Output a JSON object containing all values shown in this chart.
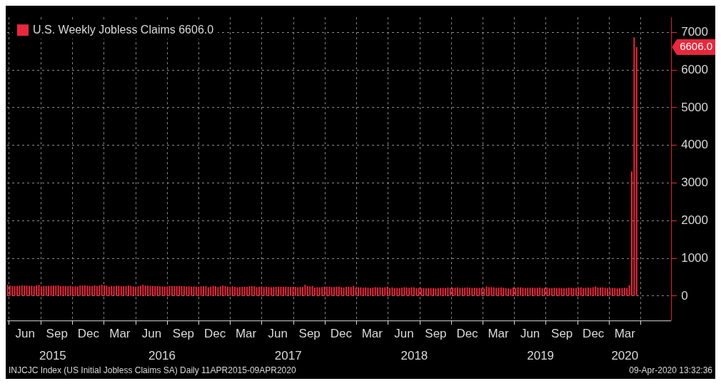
{
  "chart_data": {
    "type": "bar",
    "legend": "top left",
    "grid": true,
    "series": [
      {
        "name": "U.S. Weekly Jobless Claims 6606.0",
        "color": "#e8283c",
        "x": [
          "2015-04-11",
          "2015-04-18",
          "2015-04-25",
          "2015-05-02",
          "2015-05-09",
          "2015-05-16",
          "2015-05-23",
          "2015-05-30",
          "2015-06-06",
          "2015-06-13",
          "2015-06-20",
          "2015-06-27",
          "2015-07-04",
          "2015-07-11",
          "2015-07-18",
          "2015-07-25",
          "2015-08-01",
          "2015-08-08",
          "2015-08-15",
          "2015-08-22",
          "2015-08-29",
          "2015-09-05",
          "2015-09-12",
          "2015-09-19",
          "2015-09-26",
          "2015-10-03",
          "2015-10-10",
          "2015-10-17",
          "2015-10-24",
          "2015-10-31",
          "2015-11-07",
          "2015-11-14",
          "2015-11-21",
          "2015-11-28",
          "2015-12-05",
          "2015-12-12",
          "2015-12-19",
          "2015-12-26",
          "2016-01-02",
          "2016-01-09",
          "2016-01-16",
          "2016-01-23",
          "2016-01-30",
          "2016-02-06",
          "2016-02-13",
          "2016-02-20",
          "2016-02-27",
          "2016-03-05",
          "2016-03-12",
          "2016-03-19",
          "2016-03-26",
          "2016-04-02",
          "2016-04-09",
          "2016-04-16",
          "2016-04-23",
          "2016-04-30",
          "2016-05-07",
          "2016-05-14",
          "2016-05-21",
          "2016-05-28",
          "2016-06-04",
          "2016-06-11",
          "2016-06-18",
          "2016-06-25",
          "2016-07-02",
          "2016-07-09",
          "2016-07-16",
          "2016-07-23",
          "2016-07-30",
          "2016-08-06",
          "2016-08-13",
          "2016-08-20",
          "2016-08-27",
          "2016-09-03",
          "2016-09-10",
          "2016-09-17",
          "2016-09-24",
          "2016-10-01",
          "2016-10-08",
          "2016-10-15",
          "2016-10-22",
          "2016-10-29",
          "2016-11-05",
          "2016-11-12",
          "2016-11-19",
          "2016-11-26",
          "2016-12-03",
          "2016-12-10",
          "2016-12-17",
          "2016-12-24",
          "2016-12-31",
          "2017-01-07",
          "2017-01-14",
          "2017-01-21",
          "2017-01-28",
          "2017-02-04",
          "2017-02-11",
          "2017-02-18",
          "2017-02-25",
          "2017-03-04",
          "2017-03-11",
          "2017-03-18",
          "2017-03-25",
          "2017-04-01",
          "2017-04-08",
          "2017-04-15",
          "2017-04-22",
          "2017-04-29",
          "2017-05-06",
          "2017-05-13",
          "2017-05-20",
          "2017-05-27",
          "2017-06-03",
          "2017-06-10",
          "2017-06-17",
          "2017-06-24",
          "2017-07-01",
          "2017-07-08",
          "2017-07-15",
          "2017-07-22",
          "2017-07-29",
          "2017-08-05",
          "2017-08-12",
          "2017-08-19",
          "2017-08-26",
          "2017-09-02",
          "2017-09-09",
          "2017-09-16",
          "2017-09-23",
          "2017-09-30",
          "2017-10-07",
          "2017-10-14",
          "2017-10-21",
          "2017-10-28",
          "2017-11-04",
          "2017-11-11",
          "2017-11-18",
          "2017-11-25",
          "2017-12-02",
          "2017-12-09",
          "2017-12-16",
          "2017-12-23",
          "2017-12-30",
          "2018-01-06",
          "2018-01-13",
          "2018-01-20",
          "2018-01-27",
          "2018-02-03",
          "2018-02-10",
          "2018-02-17",
          "2018-02-24",
          "2018-03-03",
          "2018-03-10",
          "2018-03-17",
          "2018-03-24",
          "2018-03-31",
          "2018-04-07",
          "2018-04-14",
          "2018-04-21",
          "2018-04-28",
          "2018-05-05",
          "2018-05-12",
          "2018-05-19",
          "2018-05-26",
          "2018-06-02",
          "2018-06-09",
          "2018-06-16",
          "2018-06-23",
          "2018-06-30",
          "2018-07-07",
          "2018-07-14",
          "2018-07-21",
          "2018-07-28",
          "2018-08-04",
          "2018-08-11",
          "2018-08-18",
          "2018-08-25",
          "2018-09-01",
          "2018-09-08",
          "2018-09-15",
          "2018-09-22",
          "2018-09-29",
          "2018-10-06",
          "2018-10-13",
          "2018-10-20",
          "2018-10-27",
          "2018-11-03",
          "2018-11-10",
          "2018-11-17",
          "2018-11-24",
          "2018-12-01",
          "2018-12-08",
          "2018-12-15",
          "2018-12-22",
          "2018-12-29",
          "2019-01-05",
          "2019-01-12",
          "2019-01-19",
          "2019-01-26",
          "2019-02-02",
          "2019-02-09",
          "2019-02-16",
          "2019-02-23",
          "2019-03-02",
          "2019-03-09",
          "2019-03-16",
          "2019-03-23",
          "2019-03-30",
          "2019-04-06",
          "2019-04-13",
          "2019-04-20",
          "2019-04-27",
          "2019-05-04",
          "2019-05-11",
          "2019-05-18",
          "2019-05-25",
          "2019-06-01",
          "2019-06-08",
          "2019-06-15",
          "2019-06-22",
          "2019-06-29",
          "2019-07-06",
          "2019-07-13",
          "2019-07-20",
          "2019-07-27",
          "2019-08-03",
          "2019-08-10",
          "2019-08-17",
          "2019-08-24",
          "2019-08-31",
          "2019-09-07",
          "2019-09-14",
          "2019-09-21",
          "2019-09-28",
          "2019-10-05",
          "2019-10-12",
          "2019-10-19",
          "2019-10-26",
          "2019-11-02",
          "2019-11-09",
          "2019-11-16",
          "2019-11-23",
          "2019-11-30",
          "2019-12-07",
          "2019-12-14",
          "2019-12-21",
          "2019-12-28",
          "2020-01-04",
          "2020-01-11",
          "2020-01-18",
          "2020-01-25",
          "2020-02-01",
          "2020-02-08",
          "2020-02-15",
          "2020-02-22",
          "2020-02-29",
          "2020-03-07",
          "2020-03-14",
          "2020-03-21",
          "2020-03-28",
          "2020-04-04"
        ],
        "values": [
          294,
          278,
          262,
          265,
          266,
          274,
          282,
          276,
          279,
          268,
          271,
          262,
          281,
          297,
          255,
          267,
          270,
          269,
          274,
          277,
          277,
          282,
          264,
          267,
          267,
          263,
          271,
          255,
          259,
          260,
          276,
          276,
          282,
          272,
          267,
          270,
          282,
          267,
          277,
          294,
          282,
          278,
          248,
          269,
          262,
          272,
          271,
          259,
          265,
          266,
          276,
          267,
          253,
          248,
          257,
          274,
          294,
          277,
          278,
          268,
          267,
          264,
          268,
          259,
          254,
          253,
          253,
          266,
          269,
          263,
          262,
          261,
          262,
          260,
          252,
          258,
          249,
          254,
          249,
          246,
          260,
          258,
          265,
          235,
          251,
          268,
          258,
          241,
          258,
          275,
          265,
          247,
          237,
          259,
          246,
          234,
          239,
          244,
          246,
          244,
          258,
          261,
          258,
          234,
          245,
          257,
          241,
          248,
          238,
          234,
          239,
          243,
          250,
          244,
          243,
          249,
          244,
          240,
          244,
          245,
          233,
          237,
          238,
          296,
          262,
          254,
          268,
          223,
          236,
          229,
          241,
          244,
          247,
          243,
          240,
          241,
          246,
          251,
          236,
          226,
          244,
          250,
          241,
          261,
          220,
          232,
          230,
          221,
          231,
          222,
          213,
          226,
          233,
          232,
          232,
          220,
          228,
          242,
          210,
          232,
          209,
          214,
          211,
          222,
          236,
          224,
          222,
          228,
          230,
          208,
          217,
          213,
          210,
          204,
          210,
          209,
          213,
          201,
          208,
          215,
          216,
          213,
          224,
          209,
          220,
          222,
          229,
          216,
          216,
          218,
          231,
          220,
          214,
          221,
          216,
          216,
          213,
          200,
          253,
          235,
          234,
          229,
          216,
          221,
          230,
          218,
          211,
          202,
          192,
          226,
          213,
          230,
          229,
          222,
          212,
          215,
          221,
          220,
          216,
          221,
          227,
          208,
          216,
          220,
          210,
          209,
          219,
          212,
          215,
          213,
          206,
          212,
          218,
          219,
          210,
          214,
          220,
          228,
          211,
          218,
          226,
          217,
          234,
          252,
          224,
          223,
          230,
          215,
          208,
          211,
          214,
          217,
          203,
          205,
          210,
          219,
          211,
          282,
          3307,
          6867,
          6606
        ]
      }
    ],
    "xlim": [
      "2015-04-10",
      "2020-07-13"
    ],
    "xticks": [
      {
        "value": "2015-06-01",
        "label": "Jun"
      },
      {
        "value": "2015-09-01",
        "label": "Sep"
      },
      {
        "value": "2015-12-01",
        "label": "Dec"
      },
      {
        "value": "2016-03-01",
        "label": "Mar"
      },
      {
        "value": "2016-06-01",
        "label": "Jun"
      },
      {
        "value": "2016-09-01",
        "label": "Sep"
      },
      {
        "value": "2016-12-01",
        "label": "Dec"
      },
      {
        "value": "2017-03-01",
        "label": "Mar"
      },
      {
        "value": "2017-06-01",
        "label": "Jun"
      },
      {
        "value": "2017-09-01",
        "label": "Sep"
      },
      {
        "value": "2017-12-01",
        "label": "Dec"
      },
      {
        "value": "2018-03-01",
        "label": "Mar"
      },
      {
        "value": "2018-06-01",
        "label": "Jun"
      },
      {
        "value": "2018-09-01",
        "label": "Sep"
      },
      {
        "value": "2018-12-01",
        "label": "Dec"
      },
      {
        "value": "2019-03-01",
        "label": "Mar"
      },
      {
        "value": "2019-06-01",
        "label": "Jun"
      },
      {
        "value": "2019-09-01",
        "label": "Sep"
      },
      {
        "value": "2019-12-01",
        "label": "Dec"
      },
      {
        "value": "2020-03-01",
        "label": "Mar"
      }
    ],
    "x2lim": [
      "2015-04-10",
      "2020-07-13"
    ],
    "x2ticks": [
      {
        "value": "2015-08-20",
        "label": "2015"
      },
      {
        "value": "2016-07-01",
        "label": "2016"
      },
      {
        "value": "2017-07-01",
        "label": "2017"
      },
      {
        "value": "2018-07-01",
        "label": "2018"
      },
      {
        "value": "2019-07-01",
        "label": "2019"
      },
      {
        "value": "2020-03-01",
        "label": "2020"
      }
    ],
    "ylim": [
      -650,
      7400
    ],
    "yticks": [
      0,
      1000,
      2000,
      3000,
      4000,
      5000,
      6000,
      7000
    ],
    "annotations": [
      "6606.0",
      "INJCJC Index (US Initial Jobless Claims SA)  Daily 11APR2015-09APR2020",
      "09-Apr-2020 13:32:36"
    ]
  }
}
